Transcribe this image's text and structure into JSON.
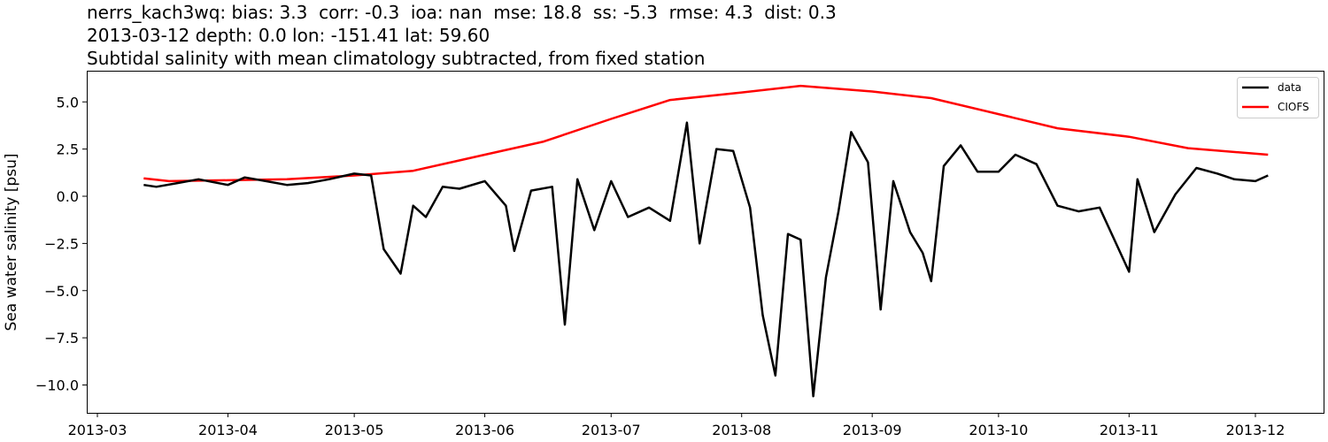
{
  "chart_data": {
    "type": "line",
    "title": [
      "nerrs_kach3wq: bias: 3.3  corr: -0.3  ioa: nan  mse: 18.8  ss: -5.3  rmse: 4.3  dist: 0.3",
      "2013-03-12 depth: 0.0 lon: -151.41 lat: 59.60",
      "Subtidal salinity with mean climatology subtracted, from fixed station"
    ],
    "xlabel": "",
    "ylabel": "Sea water salinity [psu]",
    "x_tick_labels": [
      "2013-03",
      "2013-04",
      "2013-05",
      "2013-06",
      "2013-07",
      "2013-08",
      "2013-09",
      "2013-10",
      "2013-11",
      "2013-12"
    ],
    "y_tick_labels": [
      "5.0",
      "2.5",
      "0.0",
      "−2.5",
      "−5.0",
      "−7.5",
      "−10.0"
    ],
    "y_ticks": [
      5.0,
      2.5,
      0.0,
      -2.5,
      -5.0,
      -7.5,
      -10.0
    ],
    "ylim": [
      -11.5,
      6.7
    ],
    "xlim": [
      "2013-02-27",
      "2013-12-18"
    ],
    "grid": false,
    "legend_position": "upper right",
    "legend": [
      "data",
      "CIOFS"
    ],
    "series": [
      {
        "name": "CIOFS",
        "color": "#ff0000",
        "x": [
          "2013-03-12",
          "2013-03-18",
          "2013-04-01",
          "2013-04-15",
          "2013-05-01",
          "2013-05-15",
          "2013-06-01",
          "2013-06-15",
          "2013-07-01",
          "2013-07-15",
          "2013-08-01",
          "2013-08-15",
          "2013-09-01",
          "2013-09-15",
          "2013-10-01",
          "2013-10-15",
          "2013-11-01",
          "2013-11-15",
          "2013-12-04"
        ],
        "values": [
          0.95,
          0.8,
          0.85,
          0.9,
          1.1,
          1.35,
          2.2,
          2.9,
          4.1,
          5.1,
          5.5,
          5.85,
          5.55,
          5.2,
          4.35,
          3.6,
          3.15,
          2.55,
          2.2
        ]
      },
      {
        "name": "data",
        "color": "#000000",
        "x": [
          "2013-03-12",
          "2013-03-15",
          "2013-03-20",
          "2013-03-25",
          "2013-04-01",
          "2013-04-05",
          "2013-04-10",
          "2013-04-15",
          "2013-04-20",
          "2013-04-25",
          "2013-05-01",
          "2013-05-05",
          "2013-05-08",
          "2013-05-12",
          "2013-05-15",
          "2013-05-18",
          "2013-05-22",
          "2013-05-26",
          "2013-06-01",
          "2013-06-06",
          "2013-06-08",
          "2013-06-12",
          "2013-06-17",
          "2013-06-20",
          "2013-06-23",
          "2013-06-27",
          "2013-07-01",
          "2013-07-05",
          "2013-07-10",
          "2013-07-15",
          "2013-07-19",
          "2013-07-22",
          "2013-07-26",
          "2013-07-30",
          "2013-08-03",
          "2013-08-06",
          "2013-08-09",
          "2013-08-12",
          "2013-08-15",
          "2013-08-18",
          "2013-08-21",
          "2013-08-24",
          "2013-08-27",
          "2013-08-31",
          "2013-09-03",
          "2013-09-06",
          "2013-09-10",
          "2013-09-13",
          "2013-09-15",
          "2013-09-18",
          "2013-09-22",
          "2013-09-26",
          "2013-10-01",
          "2013-10-05",
          "2013-10-10",
          "2013-10-15",
          "2013-10-20",
          "2013-10-25",
          "2013-11-01",
          "2013-11-03",
          "2013-11-07",
          "2013-11-12",
          "2013-11-17",
          "2013-11-22",
          "2013-11-26",
          "2013-12-01",
          "2013-12-04"
        ],
        "values": [
          0.6,
          0.5,
          0.7,
          0.9,
          0.6,
          1.0,
          0.8,
          0.6,
          0.7,
          0.9,
          1.2,
          1.1,
          -2.8,
          -4.1,
          -0.5,
          -1.1,
          0.5,
          0.4,
          0.8,
          -0.5,
          -2.9,
          0.3,
          0.5,
          -6.8,
          0.9,
          -1.8,
          0.8,
          -1.1,
          -0.6,
          -1.3,
          3.9,
          -2.5,
          2.5,
          2.4,
          -0.6,
          -6.3,
          -9.5,
          -2.0,
          -2.3,
          -10.6,
          -4.3,
          -0.8,
          3.4,
          1.8,
          -6.0,
          0.8,
          -1.9,
          -3.0,
          -4.5,
          1.6,
          2.7,
          1.3,
          1.3,
          2.2,
          1.7,
          -0.5,
          -0.8,
          -0.6,
          -4.0,
          0.9,
          -1.9,
          0.1,
          1.5,
          1.2,
          0.9,
          0.8,
          1.1
        ]
      }
    ]
  }
}
